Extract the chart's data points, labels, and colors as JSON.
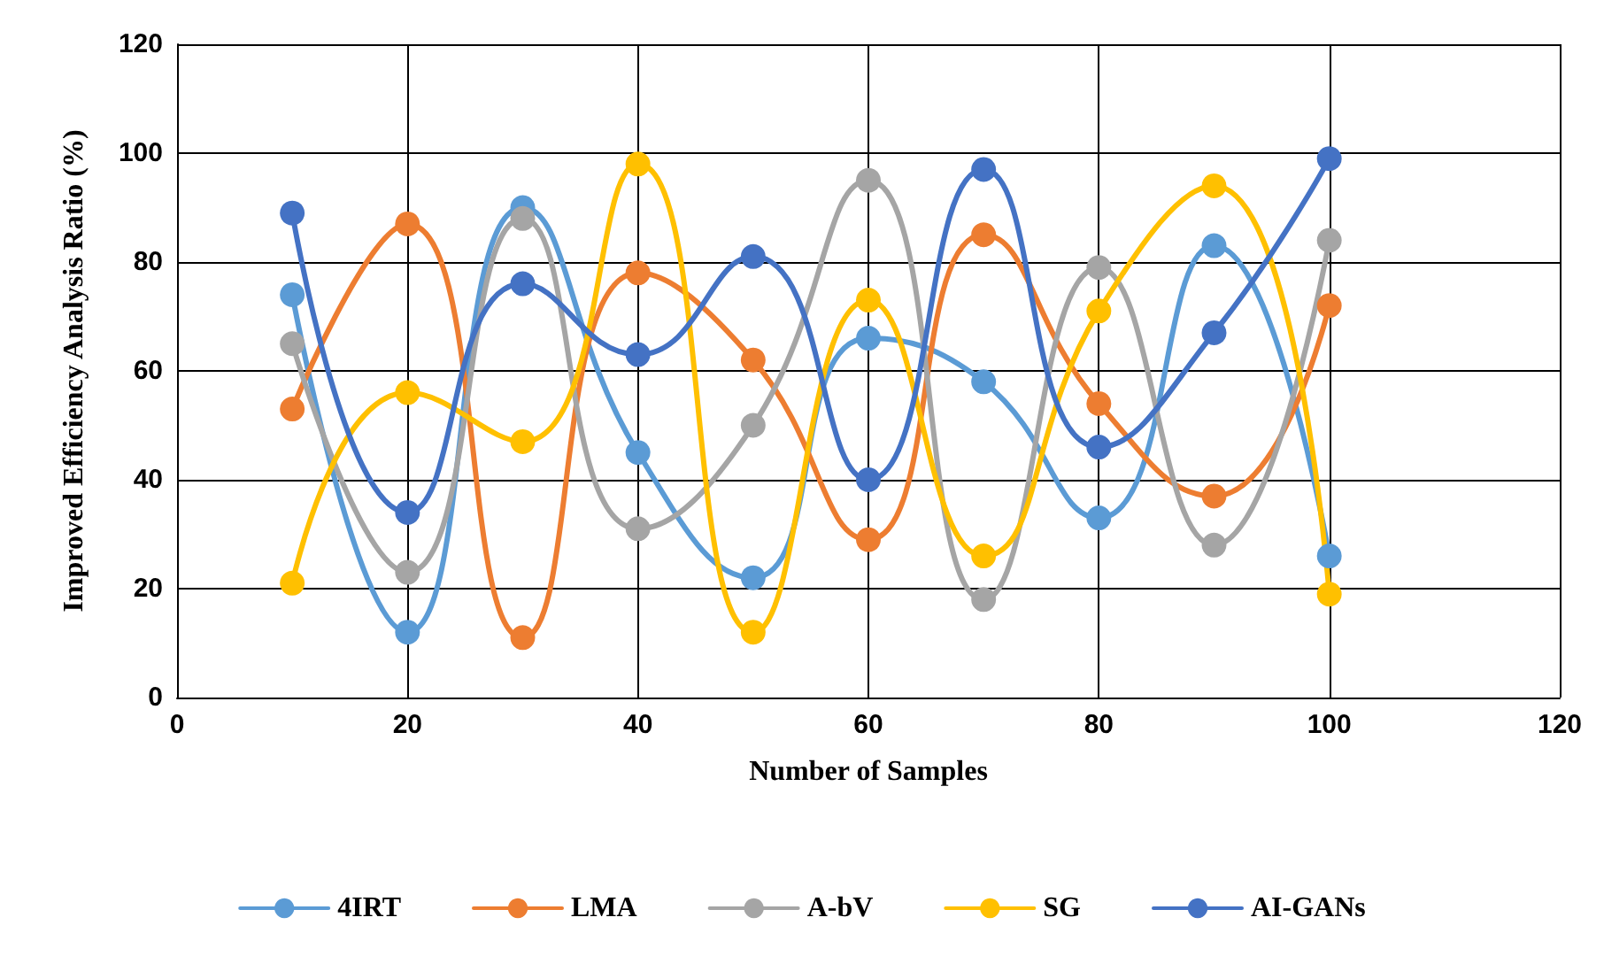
{
  "chart_data": {
    "type": "line",
    "xlabel": "Number of Samples",
    "ylabel": "Improved Efficiency Analysis Ratio (%)",
    "x": [
      10,
      20,
      30,
      40,
      50,
      60,
      70,
      80,
      90,
      100
    ],
    "series": [
      {
        "name": "4IRT",
        "color": "#5b9bd5",
        "values": [
          74,
          12,
          90,
          45,
          22,
          66,
          58,
          33,
          83,
          26
        ]
      },
      {
        "name": "LMA",
        "color": "#ed7d31",
        "values": [
          53,
          87,
          11,
          78,
          62,
          29,
          85,
          54,
          37,
          72
        ]
      },
      {
        "name": "A-bV",
        "color": "#a5a5a5",
        "values": [
          65,
          23,
          88,
          31,
          50,
          95,
          18,
          79,
          28,
          84
        ]
      },
      {
        "name": "SG",
        "color": "#ffc000",
        "values": [
          21,
          56,
          47,
          98,
          12,
          73,
          26,
          71,
          94,
          19
        ]
      },
      {
        "name": "AI-GANs",
        "color": "#4472c4",
        "values": [
          89,
          34,
          76,
          63,
          81,
          40,
          97,
          46,
          67,
          99
        ]
      }
    ],
    "xlim": [
      0,
      120
    ],
    "xticks": [
      0,
      20,
      40,
      60,
      80,
      100,
      120
    ],
    "ylim": [
      0,
      120
    ],
    "yticks": [
      0,
      20,
      40,
      60,
      80,
      100,
      120
    ],
    "grid": true,
    "legend": "bottom",
    "marker": "circle",
    "line_style": "solid"
  }
}
